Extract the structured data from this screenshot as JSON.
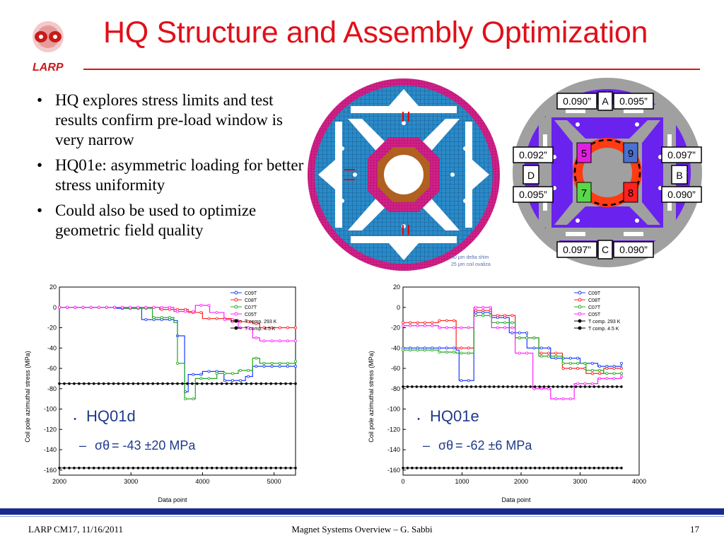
{
  "logo": {
    "text": "LARP"
  },
  "title": "HQ Structure and Assembly Optimization",
  "bullets": [
    "HQ explores stress limits and test results confirm pre-load window is very narrow",
    "HQ01e: asymmetric loading for better stress uniformity",
    "Could also be used to optimize geometric field quality"
  ],
  "magnet_figure": {
    "caption_line1": "50 μm delta shim",
    "caption_line2": "25 μm coil ovaliza"
  },
  "shim_figure": {
    "labels": {
      "A": "A",
      "B": "B",
      "C": "C",
      "D": "D"
    },
    "shims": {
      "top_left": "0.090”",
      "top_right": "0.095”",
      "left_top": "0.092”",
      "left_bottom": "0.095”",
      "right_top": "0.097”",
      "right_bottom": "0.090”",
      "bottom_left": "0.097”",
      "bottom_right": "0.090”"
    },
    "coils": [
      "5",
      "9",
      "7",
      "8"
    ]
  },
  "charts": [
    {
      "id": "hq01d",
      "ylabel": "Coil pole azimuthal stress (MPa)",
      "xlabel": "Data point",
      "xticks": [
        "2000",
        "3000",
        "4000",
        "5000"
      ],
      "yticks": [
        "20",
        "0",
        "-20",
        "-40",
        "-60",
        "-80",
        "-100",
        "-120",
        "-140",
        "-160"
      ],
      "legend": [
        "C09T",
        "C08T",
        "C07T",
        "C05T",
        "T comp. 293 K",
        "T comp. 4.5 K"
      ],
      "annotation_name": "HQ01d",
      "annotation_dash": "–",
      "annotation_sigma": "σθ",
      "annotation_value": " = -43 ±20 MPa"
    },
    {
      "id": "hq01e",
      "ylabel": "Coil pole azimuthal stress (MPa)",
      "xlabel": "Data point",
      "xticks": [
        "0",
        "1000",
        "2000",
        "3000",
        "4000"
      ],
      "yticks": [
        "20",
        "0",
        "-20",
        "-40",
        "-60",
        "-80",
        "-100",
        "-120",
        "-140",
        "-160"
      ],
      "legend": [
        "C09T",
        "C08T",
        "C07T",
        "C05T",
        "T comp. 293 K",
        "T comp. 4.5 K"
      ],
      "annotation_name": "HQ01e",
      "annotation_dash": "–",
      "annotation_sigma": "σθ",
      "annotation_value": " = -62 ±6 MPa"
    }
  ],
  "chart_data": [
    {
      "type": "line",
      "title": "",
      "xlabel": "Data point",
      "ylabel": "Coil pole azimuthal stress (MPa)",
      "xlim": [
        2000,
        5300
      ],
      "ylim": [
        -165,
        20
      ],
      "series": [
        {
          "name": "C09T",
          "color": "#1a3cff",
          "points": [
            [
              2000,
              0
            ],
            [
              2800,
              -1
            ],
            [
              3150,
              -12
            ],
            [
              3600,
              -13
            ],
            [
              3650,
              -28
            ],
            [
              3750,
              -83
            ],
            [
              3800,
              -66
            ],
            [
              4000,
              -63
            ],
            [
              4300,
              -72
            ],
            [
              4600,
              -68
            ],
            [
              4700,
              -58
            ],
            [
              5300,
              -58
            ]
          ]
        },
        {
          "name": "C08T",
          "color": "#ff2020",
          "points": [
            [
              2000,
              0
            ],
            [
              2900,
              0
            ],
            [
              3400,
              -2
            ],
            [
              3800,
              -5
            ],
            [
              4000,
              -11
            ],
            [
              4400,
              -14
            ],
            [
              4700,
              -16
            ],
            [
              4800,
              -20
            ],
            [
              5300,
              -20
            ]
          ]
        },
        {
          "name": "C07T",
          "color": "#1faa1f",
          "points": [
            [
              2000,
              0
            ],
            [
              2900,
              -1
            ],
            [
              3300,
              -10
            ],
            [
              3600,
              -15
            ],
            [
              3650,
              -55
            ],
            [
              3750,
              -90
            ],
            [
              3900,
              -70
            ],
            [
              4200,
              -65
            ],
            [
              4500,
              -62
            ],
            [
              4700,
              -50
            ],
            [
              4800,
              -55
            ],
            [
              5300,
              -53
            ]
          ]
        },
        {
          "name": "C05T",
          "color": "#ff20ff",
          "points": [
            [
              2000,
              0
            ],
            [
              3000,
              0
            ],
            [
              3600,
              -4
            ],
            [
              3900,
              2
            ],
            [
              4100,
              -5
            ],
            [
              4300,
              -12
            ],
            [
              4500,
              -20
            ],
            [
              4700,
              -30
            ],
            [
              4800,
              -33
            ],
            [
              5300,
              -33
            ]
          ]
        },
        {
          "name": "T comp. 293 K",
          "color": "#000000",
          "points": [
            [
              2000,
              -75
            ],
            [
              5300,
              -75
            ]
          ]
        },
        {
          "name": "T comp. 4.5 K",
          "color": "#000000",
          "points": [
            [
              2000,
              -158
            ],
            [
              5300,
              -158
            ]
          ]
        }
      ]
    },
    {
      "type": "line",
      "title": "",
      "xlabel": "Data point",
      "ylabel": "Coil pole azimuthal stress (MPa)",
      "xlim": [
        0,
        4000
      ],
      "ylim": [
        -165,
        20
      ],
      "series": [
        {
          "name": "C09T",
          "color": "#1a3cff",
          "points": [
            [
              0,
              -40
            ],
            [
              500,
              -40
            ],
            [
              900,
              -42
            ],
            [
              950,
              -72
            ],
            [
              1100,
              -72
            ],
            [
              1200,
              -5
            ],
            [
              1500,
              -10
            ],
            [
              1800,
              -25
            ],
            [
              2100,
              -40
            ],
            [
              2500,
              -50
            ],
            [
              3000,
              -55
            ],
            [
              3300,
              -58
            ],
            [
              3700,
              -55
            ]
          ]
        },
        {
          "name": "C08T",
          "color": "#ff2020",
          "points": [
            [
              0,
              -15
            ],
            [
              600,
              -13
            ],
            [
              900,
              -40
            ],
            [
              1100,
              -40
            ],
            [
              1200,
              -3
            ],
            [
              1500,
              -8
            ],
            [
              1900,
              -30
            ],
            [
              2300,
              -45
            ],
            [
              2700,
              -60
            ],
            [
              3100,
              -65
            ],
            [
              3400,
              -60
            ],
            [
              3700,
              -60
            ]
          ]
        },
        {
          "name": "C07T",
          "color": "#1faa1f",
          "points": [
            [
              0,
              -42
            ],
            [
              600,
              -44
            ],
            [
              900,
              -45
            ],
            [
              1100,
              -45
            ],
            [
              1200,
              -8
            ],
            [
              1500,
              -15
            ],
            [
              1900,
              -30
            ],
            [
              2300,
              -48
            ],
            [
              2700,
              -55
            ],
            [
              3100,
              -62
            ],
            [
              3400,
              -65
            ],
            [
              3700,
              -65
            ]
          ]
        },
        {
          "name": "C05T",
          "color": "#ff20ff",
          "points": [
            [
              0,
              -18
            ],
            [
              600,
              -20
            ],
            [
              900,
              -20
            ],
            [
              1100,
              -20
            ],
            [
              1200,
              0
            ],
            [
              1500,
              -20
            ],
            [
              1900,
              -45
            ],
            [
              2200,
              -80
            ],
            [
              2500,
              -90
            ],
            [
              2900,
              -75
            ],
            [
              3300,
              -70
            ],
            [
              3700,
              -68
            ]
          ]
        },
        {
          "name": "T comp. 293 K",
          "color": "#000000",
          "points": [
            [
              0,
              -78
            ],
            [
              3700,
              -78
            ]
          ]
        },
        {
          "name": "T comp. 4.5 K",
          "color": "#000000",
          "points": [
            [
              0,
              -158
            ],
            [
              3700,
              -158
            ]
          ]
        }
      ]
    }
  ],
  "footer": {
    "left": "LARP CM17, 11/16/2011",
    "center": "Magnet Systems Overview – G. Sabbi",
    "page": "17"
  }
}
